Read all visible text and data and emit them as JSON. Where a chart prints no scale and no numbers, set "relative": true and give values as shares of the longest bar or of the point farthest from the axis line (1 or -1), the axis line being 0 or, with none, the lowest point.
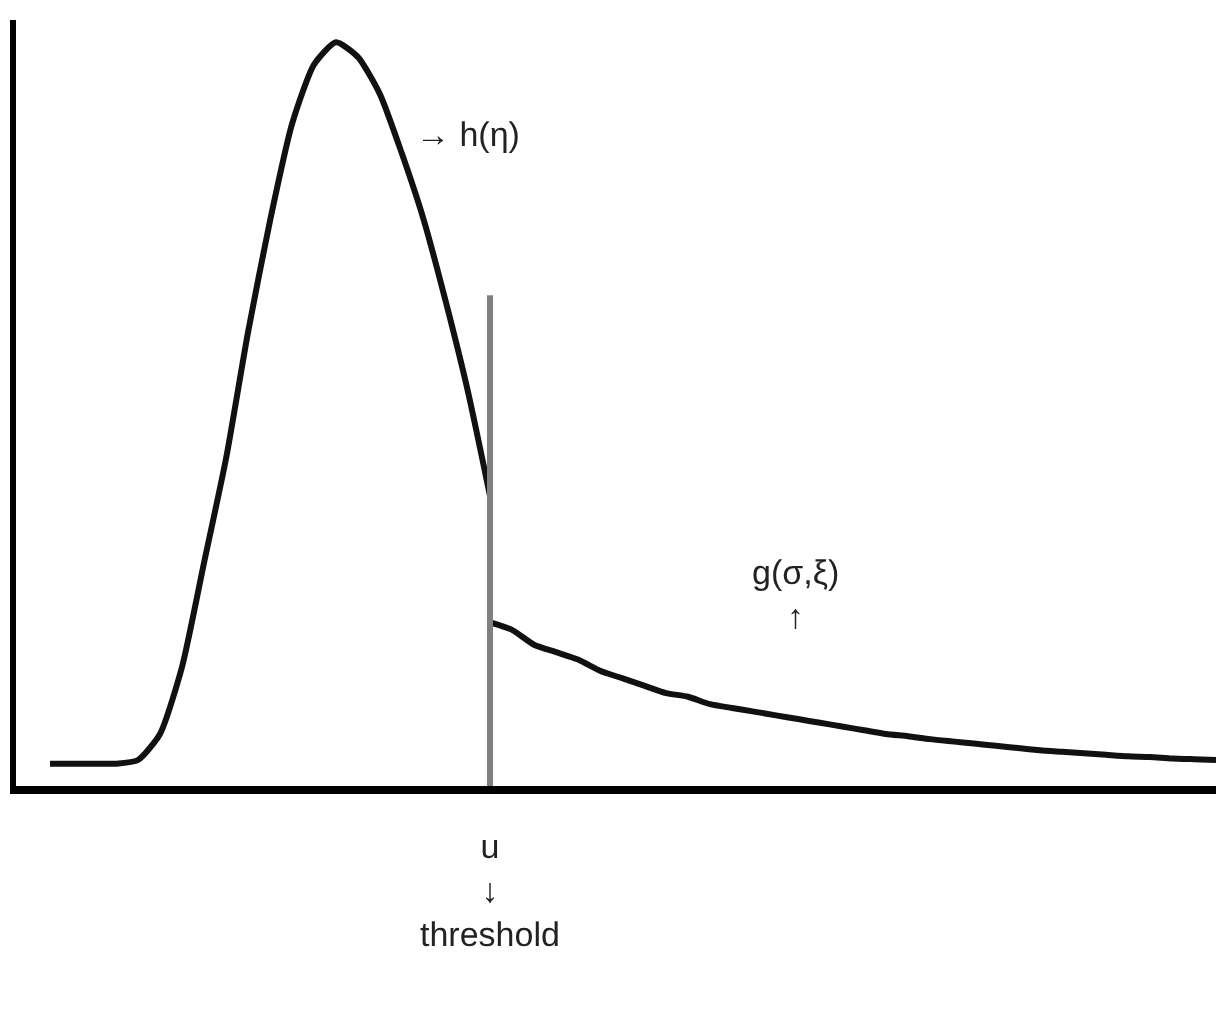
{
  "chart_data": {
    "type": "line",
    "relative": true,
    "marker": "none",
    "line_style": "solid",
    "categories": [
      null,
      null,
      null,
      null,
      null,
      null,
      null,
      null,
      null,
      null,
      null,
      null,
      null,
      null,
      null,
      null,
      null,
      null,
      null,
      null,
      null,
      null,
      null,
      null,
      null,
      null,
      null,
      null,
      null,
      null,
      null,
      null,
      null,
      null,
      null,
      null,
      null,
      null,
      null,
      null,
      null,
      null,
      null,
      null,
      null,
      null,
      null,
      null,
      null,
      null,
      null,
      null,
      null,
      null
    ],
    "series": [
      {
        "color": "#111111",
        "values": [
          0.03,
          0.03,
          0.03,
          0.03,
          0.035,
          0.07,
          0.16,
          0.3,
          0.44,
          0.61,
          0.76,
          0.89,
          0.97,
          1.0,
          0.98,
          0.93,
          0.85,
          0.76,
          0.65,
          0.53,
          0.39,
          null,
          null,
          null,
          null,
          null,
          null,
          null,
          null,
          null,
          null,
          null,
          null,
          null,
          null,
          null,
          null,
          null,
          null,
          null,
          null,
          null,
          null,
          null,
          null,
          null,
          null,
          null,
          null,
          null,
          null,
          null,
          null,
          null
        ]
      },
      {
        "color": "#111111",
        "values": [
          null,
          null,
          null,
          null,
          null,
          null,
          null,
          null,
          null,
          null,
          null,
          null,
          null,
          null,
          null,
          null,
          null,
          null,
          null,
          null,
          0.22,
          0.21,
          0.19,
          0.18,
          0.17,
          0.155,
          0.145,
          0.135,
          0.125,
          0.12,
          0.11,
          0.105,
          0.1,
          0.095,
          0.09,
          0.085,
          0.08,
          0.075,
          0.07,
          0.067,
          0.063,
          0.06,
          0.057,
          0.054,
          0.051,
          0.048,
          0.046,
          0.044,
          0.042,
          0.04,
          0.039,
          0.037,
          0.036,
          0.035
        ]
      }
    ],
    "annotations": [
      "→ h(η)",
      "g(σ,ξ)\n↑",
      "u\n↓\nthreshold"
    ]
  }
}
